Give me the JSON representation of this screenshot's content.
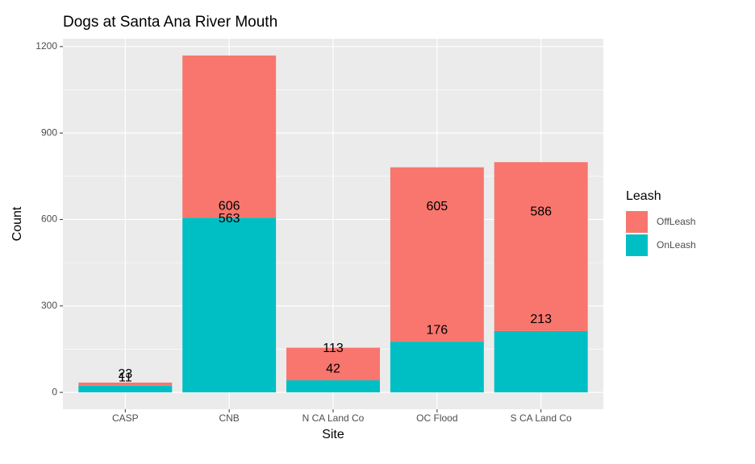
{
  "chart_data": {
    "type": "bar",
    "stacked": true,
    "title": "Dogs at Santa Ana River Mouth",
    "x_label": "Site",
    "y_label": "Count",
    "legend_title": "Leash",
    "categories": [
      "CASP",
      "CNB",
      "N CA Land Co",
      "OC Flood",
      "S CA Land Co"
    ],
    "series": [
      {
        "name": "OnLeash",
        "color": "#00bfc4",
        "values": [
          23,
          606,
          42,
          176,
          213
        ]
      },
      {
        "name": "OffLeash",
        "color": "#f8766d",
        "values": [
          11,
          563,
          113,
          605,
          586
        ]
      }
    ],
    "ylim": [
      -58.45,
      1227.45
    ],
    "yticks": [
      0,
      300,
      600,
      900,
      1200
    ],
    "grid": true,
    "legend": "right"
  }
}
